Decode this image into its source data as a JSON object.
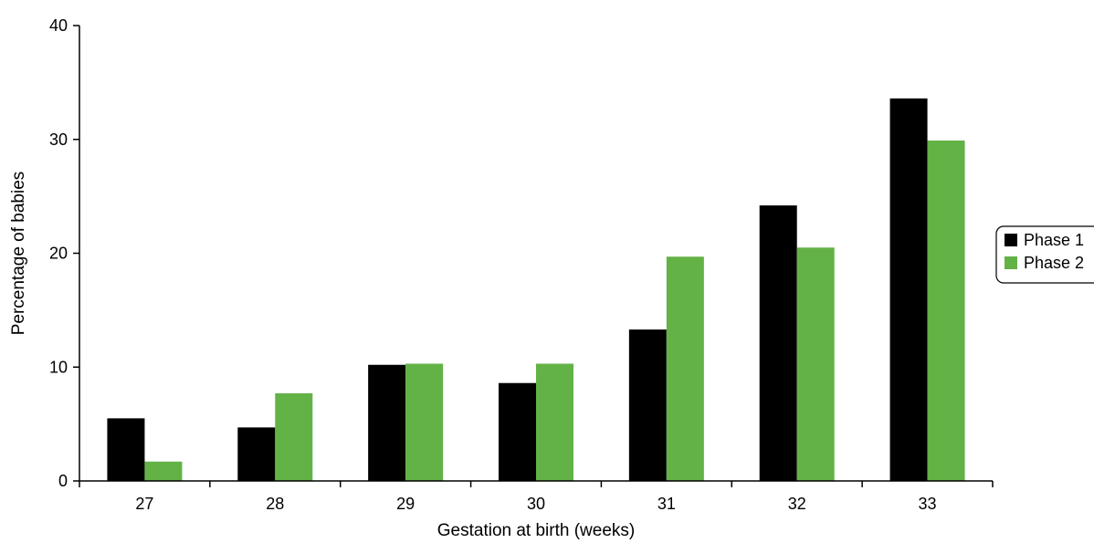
{
  "chart_data": {
    "type": "bar",
    "xlabel": "Gestation at birth (weeks)",
    "ylabel": "Percentage of babies",
    "categories": [
      "27",
      "28",
      "29",
      "30",
      "31",
      "32",
      "33"
    ],
    "ylim": [
      0,
      40
    ],
    "yticks": [
      "0",
      "10",
      "20",
      "30",
      "40"
    ],
    "series": [
      {
        "name": "Phase 1",
        "color": "#000000",
        "values": [
          5.5,
          4.7,
          10.2,
          8.6,
          13.3,
          24.2,
          33.6
        ]
      },
      {
        "name": "Phase 2",
        "color": "#63b246",
        "values": [
          1.7,
          7.7,
          10.3,
          10.3,
          19.7,
          20.5,
          29.9
        ]
      }
    ],
    "legend_position": "right",
    "grid": false
  }
}
